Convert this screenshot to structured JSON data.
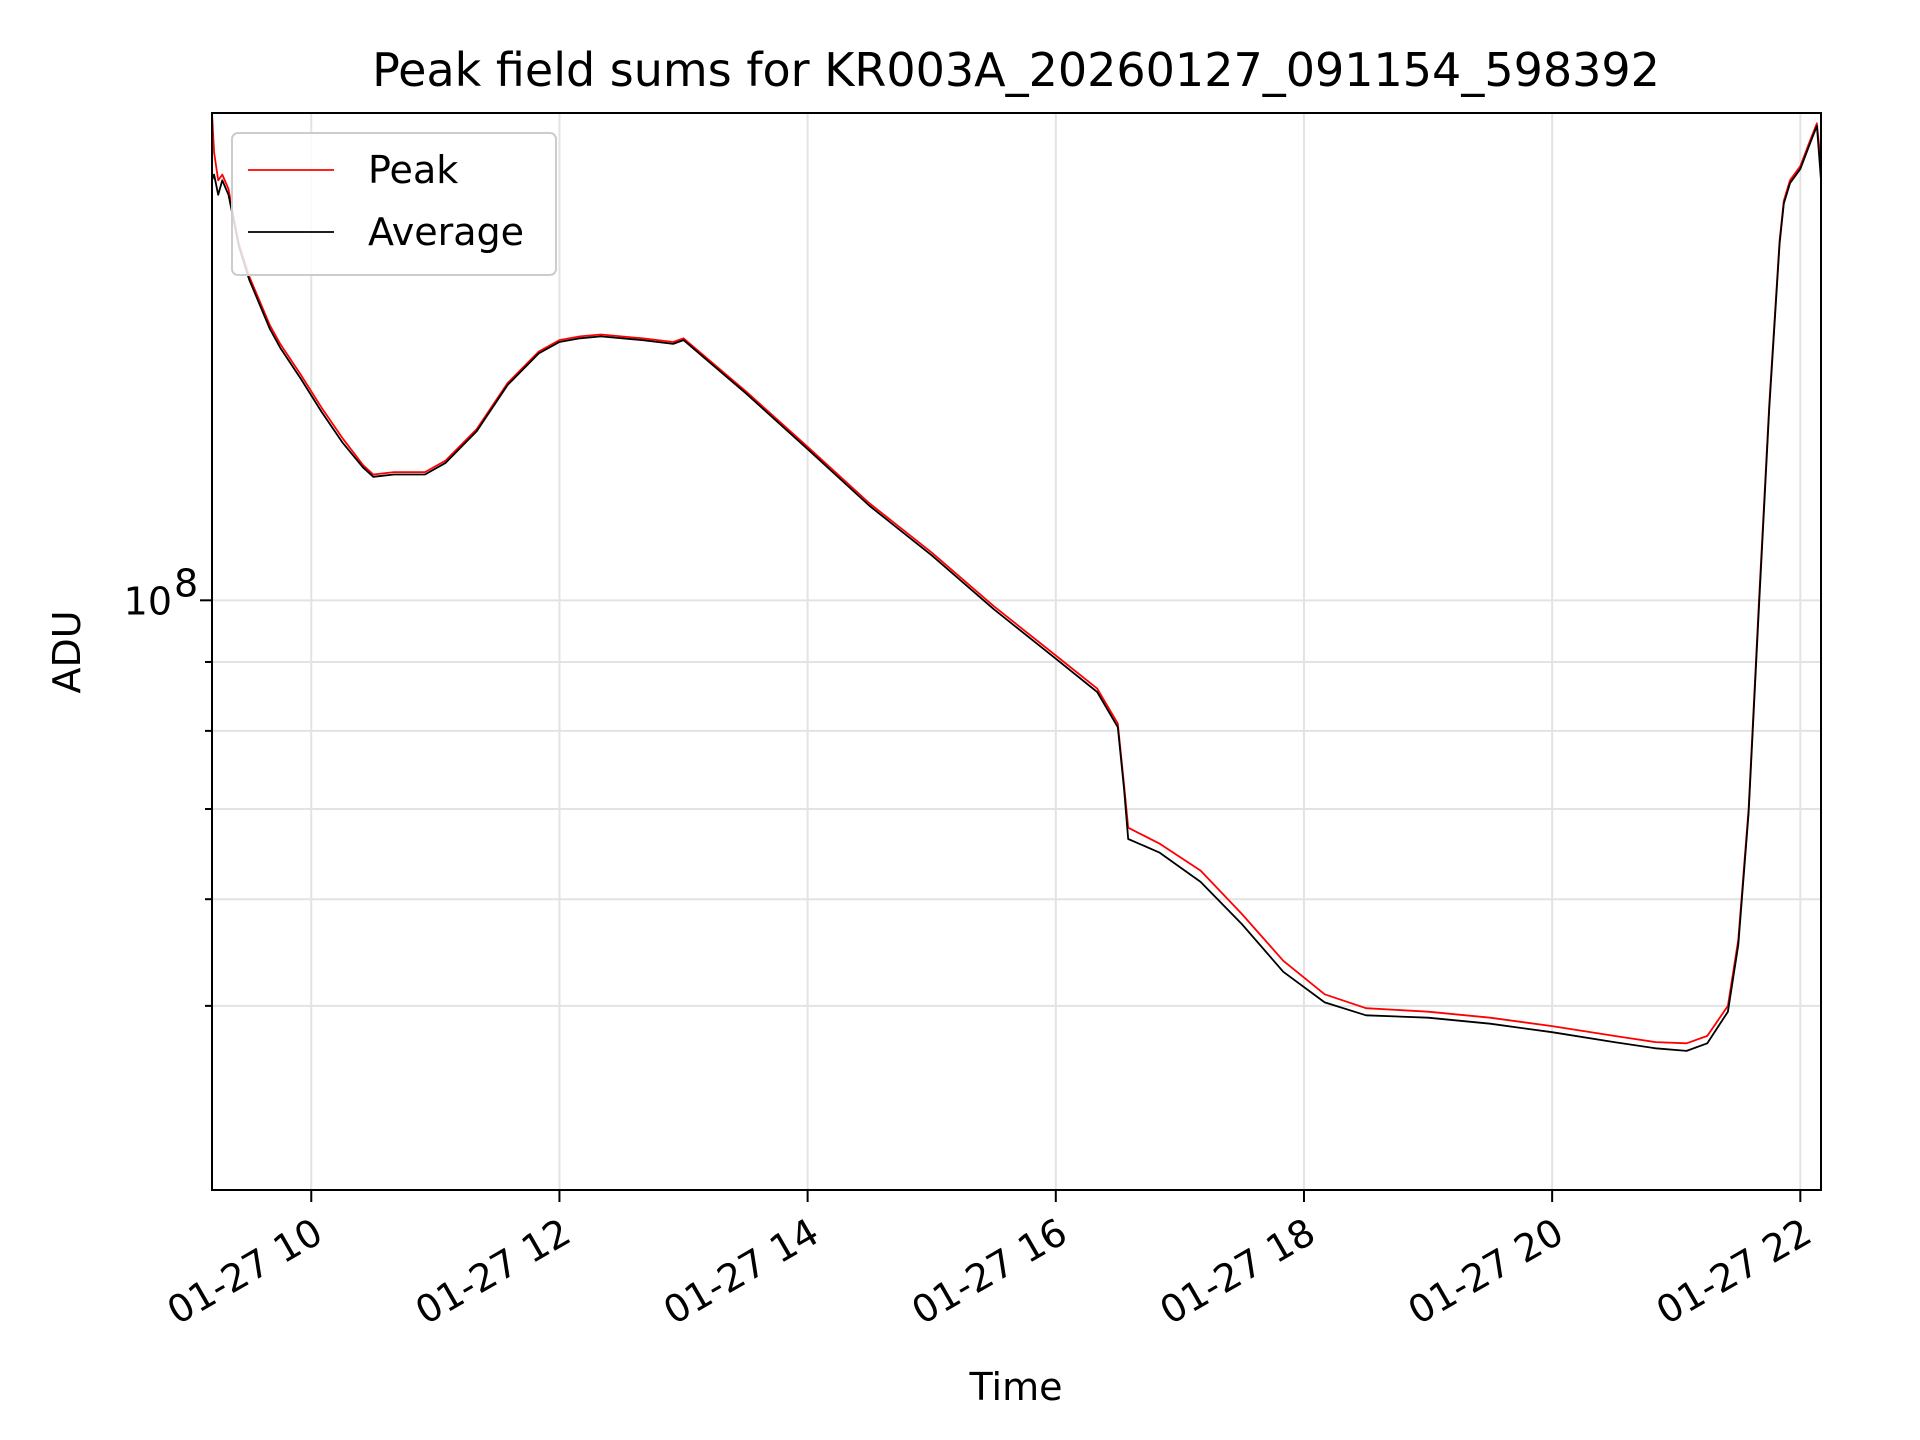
{
  "chart_data": {
    "type": "line",
    "title": "Peak field sums for KR003A_20260127_091154_598392",
    "xlabel": "Time",
    "ylabel": "ADU",
    "x_scale": "time",
    "y_scale": "log",
    "xlim": [
      "2026-01-27 09:12",
      "2026-01-27 22:10"
    ],
    "ylim": [
      36500000,
      230000000
    ],
    "x_ticks": [
      {
        "value": "2026-01-27 10:00",
        "label": "01-27 10"
      },
      {
        "value": "2026-01-27 12:00",
        "label": "01-27 12"
      },
      {
        "value": "2026-01-27 14:00",
        "label": "01-27 14"
      },
      {
        "value": "2026-01-27 16:00",
        "label": "01-27 16"
      },
      {
        "value": "2026-01-27 18:00",
        "label": "01-27 18"
      },
      {
        "value": "2026-01-27 20:00",
        "label": "01-27 20"
      },
      {
        "value": "2026-01-27 22:00",
        "label": "01-27 22"
      }
    ],
    "y_major_ticks": [
      {
        "value": 100000000,
        "label_base": "10",
        "label_exp": "8"
      }
    ],
    "y_minor_ticks": [
      50000000,
      60000000,
      70000000,
      80000000,
      90000000
    ],
    "grid": true,
    "legend_position": "top-left",
    "series": [
      {
        "name": "Peak",
        "color": "#ff0000",
        "x": [
          "2026-01-27 09:12",
          "2026-01-27 09:13",
          "2026-01-27 09:15",
          "2026-01-27 09:17",
          "2026-01-27 09:20",
          "2026-01-27 09:22",
          "2026-01-27 09:25",
          "2026-01-27 09:30",
          "2026-01-27 09:40",
          "2026-01-27 09:45",
          "2026-01-27 09:55",
          "2026-01-27 10:05",
          "2026-01-27 10:15",
          "2026-01-27 10:25",
          "2026-01-27 10:30",
          "2026-01-27 10:40",
          "2026-01-27 10:55",
          "2026-01-27 11:05",
          "2026-01-27 11:20",
          "2026-01-27 11:35",
          "2026-01-27 11:50",
          "2026-01-27 12:00",
          "2026-01-27 12:10",
          "2026-01-27 12:20",
          "2026-01-27 12:40",
          "2026-01-27 12:55",
          "2026-01-27 13:00",
          "2026-01-27 13:30",
          "2026-01-27 14:00",
          "2026-01-27 14:30",
          "2026-01-27 15:00",
          "2026-01-27 15:30",
          "2026-01-27 16:00",
          "2026-01-27 16:20",
          "2026-01-27 16:30",
          "2026-01-27 16:33",
          "2026-01-27 16:35",
          "2026-01-27 16:50",
          "2026-01-27 17:10",
          "2026-01-27 17:30",
          "2026-01-27 17:50",
          "2026-01-27 18:10",
          "2026-01-27 18:30",
          "2026-01-27 19:00",
          "2026-01-27 19:30",
          "2026-01-27 20:00",
          "2026-01-27 20:30",
          "2026-01-27 20:50",
          "2026-01-27 21:05",
          "2026-01-27 21:15",
          "2026-01-27 21:25",
          "2026-01-27 21:30",
          "2026-01-27 21:35",
          "2026-01-27 21:40",
          "2026-01-27 21:45",
          "2026-01-27 21:50",
          "2026-01-27 21:52",
          "2026-01-27 21:55",
          "2026-01-27 22:00",
          "2026-01-27 22:05",
          "2026-01-27 22:08",
          "2026-01-27 22:10"
        ],
        "y": [
          230000000,
          215000000,
          205000000,
          207000000,
          202000000,
          194000000,
          184000000,
          174000000,
          160000000,
          155000000,
          147000000,
          139000000,
          132000000,
          126000000,
          124000000,
          124500000,
          124500000,
          127000000,
          134000000,
          145000000,
          153000000,
          156000000,
          157000000,
          157500000,
          156500000,
          155500000,
          156500000,
          143000000,
          130000000,
          118000000,
          108500000,
          99000000,
          91000000,
          86000000,
          81000000,
          73000000,
          67800000,
          66000000,
          63000000,
          58500000,
          54000000,
          51000000,
          49800000,
          49500000,
          49000000,
          48300000,
          47500000,
          47000000,
          46900000,
          47500000,
          50000000,
          56000000,
          70000000,
          100000000,
          140000000,
          185000000,
          198000000,
          205000000,
          210000000,
          220000000,
          226000000,
          210000000
        ]
      },
      {
        "name": "Average",
        "color": "#000000",
        "x": [
          "2026-01-27 09:12",
          "2026-01-27 09:13",
          "2026-01-27 09:15",
          "2026-01-27 09:17",
          "2026-01-27 09:20",
          "2026-01-27 09:22",
          "2026-01-27 09:25",
          "2026-01-27 09:30",
          "2026-01-27 09:40",
          "2026-01-27 09:45",
          "2026-01-27 09:55",
          "2026-01-27 10:05",
          "2026-01-27 10:15",
          "2026-01-27 10:25",
          "2026-01-27 10:30",
          "2026-01-27 10:40",
          "2026-01-27 10:55",
          "2026-01-27 11:05",
          "2026-01-27 11:20",
          "2026-01-27 11:35",
          "2026-01-27 11:50",
          "2026-01-27 12:00",
          "2026-01-27 12:10",
          "2026-01-27 12:20",
          "2026-01-27 12:40",
          "2026-01-27 12:55",
          "2026-01-27 13:00",
          "2026-01-27 13:30",
          "2026-01-27 14:00",
          "2026-01-27 14:30",
          "2026-01-27 15:00",
          "2026-01-27 15:30",
          "2026-01-27 16:00",
          "2026-01-27 16:20",
          "2026-01-27 16:30",
          "2026-01-27 16:33",
          "2026-01-27 16:35",
          "2026-01-27 16:50",
          "2026-01-27 17:10",
          "2026-01-27 17:30",
          "2026-01-27 17:50",
          "2026-01-27 18:10",
          "2026-01-27 18:30",
          "2026-01-27 19:00",
          "2026-01-27 19:30",
          "2026-01-27 20:00",
          "2026-01-27 20:30",
          "2026-01-27 20:50",
          "2026-01-27 21:05",
          "2026-01-27 21:15",
          "2026-01-27 21:25",
          "2026-01-27 21:30",
          "2026-01-27 21:35",
          "2026-01-27 21:40",
          "2026-01-27 21:45",
          "2026-01-27 21:50",
          "2026-01-27 21:52",
          "2026-01-27 21:55",
          "2026-01-27 22:00",
          "2026-01-27 22:05",
          "2026-01-27 22:08",
          "2026-01-27 22:10"
        ],
        "y": [
          205000000,
          207000000,
          200000000,
          205000000,
          200000000,
          193000000,
          183000000,
          173000000,
          159000000,
          154000000,
          146000000,
          138000000,
          131000000,
          125500000,
          123500000,
          124000000,
          124000000,
          126500000,
          133500000,
          144500000,
          152500000,
          155500000,
          156500000,
          157000000,
          156000000,
          155000000,
          156000000,
          142500000,
          129500000,
          117500000,
          108000000,
          98500000,
          90500000,
          85500000,
          80500000,
          72500000,
          66500000,
          65000000,
          61800000,
          57500000,
          53000000,
          50300000,
          49200000,
          49000000,
          48500000,
          47800000,
          47000000,
          46500000,
          46300000,
          46900000,
          49500000,
          55500000,
          69500000,
          99000000,
          139000000,
          184000000,
          197000000,
          204000000,
          209000000,
          219000000,
          225000000,
          205000000
        ]
      }
    ]
  }
}
